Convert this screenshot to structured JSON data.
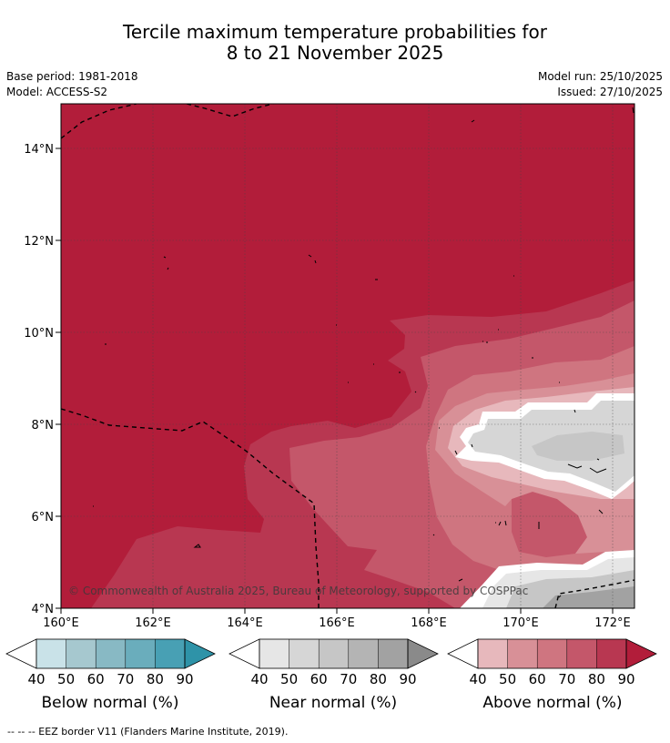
{
  "title_line1": "Tercile maximum temperature probabilities for",
  "title_line2": "8 to 21 November 2025",
  "base_period": "Base period: 1981-2018",
  "model": "Model: ACCESS-S2",
  "model_run": "Model run: 25/10/2025",
  "issued": "Issued: 27/10/2025",
  "copyright": "© Commonwealth of Australia 2025, Bureau of Meteorology, supported by COSPPac",
  "footer": "--  --  -- EEZ border V11 (Flanders Marine Institute, 2019).",
  "map": {
    "lat_ticks": [
      "14°N",
      "12°N",
      "10°N",
      "8°N",
      "6°N",
      "4°N"
    ],
    "lon_ticks": [
      "160°E",
      "162°E",
      "164°E",
      "166°E",
      "168°E",
      "170°E",
      "172°E"
    ]
  },
  "colorbars": [
    {
      "label": "Below normal (%)",
      "ticks": [
        "40",
        "50",
        "60",
        "70",
        "80",
        "90"
      ],
      "colors": [
        "#ffffff",
        "#c9e2e8",
        "#a6c8cf",
        "#88b9c4",
        "#6aadbc",
        "#48a0b4",
        "#2e93a8"
      ]
    },
    {
      "label": "Near normal (%)",
      "ticks": [
        "40",
        "50",
        "60",
        "70",
        "80",
        "90"
      ],
      "colors": [
        "#ffffff",
        "#e6e6e6",
        "#d6d6d6",
        "#c6c6c6",
        "#b4b4b4",
        "#a2a2a2",
        "#8a8a8a"
      ]
    },
    {
      "label": "Above normal (%)",
      "ticks": [
        "40",
        "50",
        "60",
        "70",
        "80",
        "90"
      ],
      "colors": [
        "#ffffff",
        "#e7b8bc",
        "#d89097",
        "#cf7580",
        "#c4576a",
        "#b83751",
        "#b21d3a"
      ]
    }
  ]
}
